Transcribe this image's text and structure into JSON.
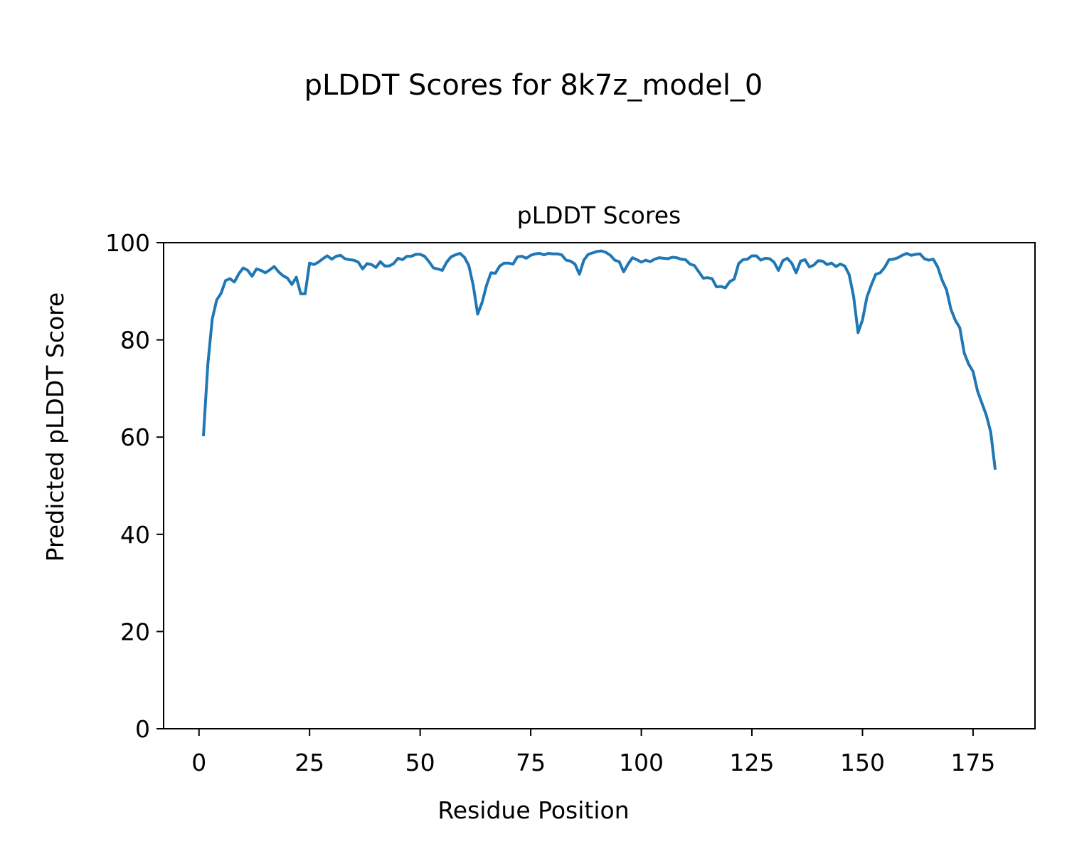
{
  "figure_title": "pLDDT Scores for 8k7z_model_0",
  "chart_data": {
    "type": "line",
    "title": "pLDDT Scores",
    "xlabel": "Residue Position",
    "ylabel": "Predicted pLDDT Score",
    "xlim": [
      -8,
      189
    ],
    "ylim": [
      0,
      100
    ],
    "xticks": [
      0,
      25,
      50,
      75,
      100,
      125,
      150,
      175
    ],
    "yticks": [
      0,
      20,
      40,
      60,
      80,
      100
    ],
    "grid": false,
    "legend": "none",
    "series": [
      {
        "color": "#1f77b4",
        "x": [
          1,
          2,
          3,
          4,
          5,
          6,
          7,
          8,
          9,
          10,
          11,
          12,
          13,
          14,
          15,
          16,
          17,
          18,
          19,
          20,
          21,
          22,
          23,
          24,
          25,
          26,
          27,
          28,
          29,
          30,
          31,
          32,
          33,
          34,
          35,
          36,
          37,
          38,
          39,
          40,
          41,
          42,
          43,
          44,
          45,
          46,
          47,
          48,
          49,
          50,
          51,
          52,
          53,
          54,
          55,
          56,
          57,
          58,
          59,
          60,
          61,
          62,
          63,
          64,
          65,
          66,
          67,
          68,
          69,
          70,
          71,
          72,
          73,
          74,
          75,
          76,
          77,
          78,
          79,
          80,
          81,
          82,
          83,
          84,
          85,
          86,
          87,
          88,
          89,
          90,
          91,
          92,
          93,
          94,
          95,
          96,
          97,
          98,
          99,
          100,
          101,
          102,
          103,
          104,
          105,
          106,
          107,
          108,
          109,
          110,
          111,
          112,
          113,
          114,
          115,
          116,
          117,
          118,
          119,
          120,
          121,
          122,
          123,
          124,
          125,
          126,
          127,
          128,
          129,
          130,
          131,
          132,
          133,
          134,
          135,
          136,
          137,
          138,
          139,
          140,
          141,
          142,
          143,
          144,
          145,
          146,
          147,
          148,
          149,
          150,
          151,
          152,
          153,
          154,
          155,
          156,
          157,
          158,
          159,
          160,
          161,
          162,
          163,
          164,
          165,
          166,
          167,
          168,
          169,
          170,
          171,
          172,
          173,
          174,
          175,
          176,
          177,
          178,
          179,
          180
        ],
        "y": [
          60.2,
          75.0,
          84.3,
          88.2,
          89.6,
          92.2,
          92.6,
          91.9,
          93.6,
          94.8,
          94.3,
          93.1,
          94.6,
          94.3,
          93.8,
          94.4,
          95.1,
          94.0,
          93.2,
          92.7,
          91.4,
          92.9,
          89.5,
          89.5,
          95.8,
          95.5,
          96.0,
          96.7,
          97.3,
          96.6,
          97.2,
          97.4,
          96.7,
          96.5,
          96.4,
          96.0,
          94.6,
          95.7,
          95.5,
          94.9,
          96.1,
          95.2,
          95.2,
          95.7,
          96.8,
          96.5,
          97.2,
          97.2,
          97.6,
          97.6,
          97.2,
          96.1,
          94.8,
          94.6,
          94.3,
          96.0,
          97.1,
          97.5,
          97.8,
          97.0,
          95.3,
          91.2,
          85.3,
          87.7,
          91.2,
          93.8,
          93.7,
          95.2,
          95.8,
          95.8,
          95.6,
          97.1,
          97.2,
          96.8,
          97.4,
          97.7,
          97.8,
          97.5,
          97.8,
          97.7,
          97.7,
          97.5,
          96.4,
          96.2,
          95.6,
          93.5,
          96.4,
          97.6,
          97.9,
          98.2,
          98.3,
          98.0,
          97.4,
          96.4,
          96.1,
          94.0,
          95.6,
          96.9,
          96.5,
          96.0,
          96.4,
          96.1,
          96.6,
          96.9,
          96.8,
          96.7,
          97.0,
          96.9,
          96.6,
          96.5,
          95.6,
          95.3,
          94.0,
          92.7,
          92.8,
          92.6,
          90.9,
          91.0,
          90.7,
          92.0,
          92.5,
          95.7,
          96.5,
          96.6,
          97.3,
          97.3,
          96.4,
          96.8,
          96.7,
          96.0,
          94.3,
          96.3,
          96.8,
          95.8,
          93.8,
          96.2,
          96.5,
          95.0,
          95.4,
          96.3,
          96.2,
          95.5,
          95.8,
          95.1,
          95.6,
          95.2,
          93.4,
          88.9,
          81.5,
          84.1,
          88.8,
          91.3,
          93.5,
          93.8,
          94.9,
          96.5,
          96.6,
          96.9,
          97.4,
          97.8,
          97.4,
          97.6,
          97.7,
          96.7,
          96.4,
          96.6,
          95.0,
          92.3,
          90.3,
          86.3,
          84.0,
          82.5,
          77.3,
          75.0,
          73.5,
          69.5,
          67.0,
          64.5,
          61.0,
          53.3
        ]
      }
    ]
  }
}
